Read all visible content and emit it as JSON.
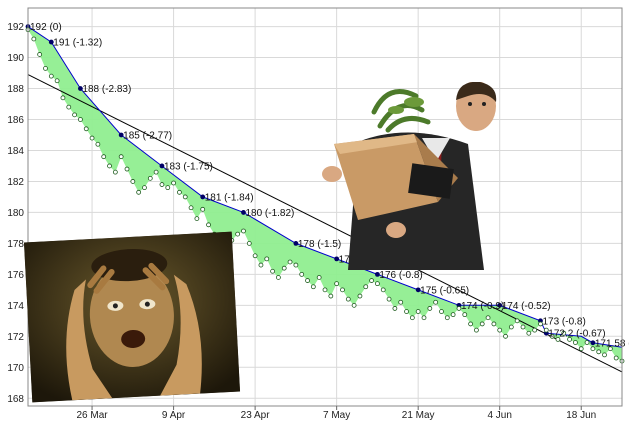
{
  "chart_data": {
    "type": "area",
    "title": "",
    "xlabel": "",
    "ylabel": "",
    "ylim": [
      167.5,
      193.2
    ],
    "yticks": [
      168,
      170,
      172,
      174,
      176,
      178,
      180,
      182,
      184,
      186,
      188,
      190,
      192
    ],
    "xlim": [
      "2012-03-15",
      "2012-06-25"
    ],
    "xticks": [
      {
        "date": "2012-03-26",
        "label": "26 Mar"
      },
      {
        "date": "2012-04-09",
        "label": "9 Apr"
      },
      {
        "date": "2012-04-23",
        "label": "23 Apr"
      },
      {
        "date": "2012-05-07",
        "label": "7 May"
      },
      {
        "date": "2012-05-21",
        "label": "21 May"
      },
      {
        "date": "2012-06-04",
        "label": "4 Jun"
      },
      {
        "date": "2012-06-18",
        "label": "18 Jun"
      }
    ],
    "grid": true,
    "series": [
      {
        "role": "weekly-weigh-in",
        "color": "#0000cc",
        "points": [
          {
            "date": "2012-03-15",
            "y": 192,
            "label": "192 (0)"
          },
          {
            "date": "2012-03-19",
            "y": 191,
            "label": "191 (-1.32)"
          },
          {
            "date": "2012-03-24",
            "y": 188,
            "label": "188 (-2.83)"
          },
          {
            "date": "2012-03-31",
            "y": 185,
            "label": "185 (-2.77)"
          },
          {
            "date": "2012-04-07",
            "y": 183,
            "label": "183 (-1.75)"
          },
          {
            "date": "2012-04-14",
            "y": 181,
            "label": "181 (-1.84)"
          },
          {
            "date": "2012-04-21",
            "y": 180,
            "label": "180 (-1.82)"
          },
          {
            "date": "2012-04-30",
            "y": 178,
            "label": "178 (-1.5)"
          },
          {
            "date": "2012-05-07",
            "y": 177,
            "label": "177 (-1.63)"
          },
          {
            "date": "2012-05-14",
            "y": 176,
            "label": "176 (-0.8)"
          },
          {
            "date": "2012-05-21",
            "y": 175,
            "label": "175 (-0.65)"
          },
          {
            "date": "2012-05-28",
            "y": 174,
            "label": "174 (-0.9)"
          },
          {
            "date": "2012-06-04",
            "y": 174,
            "label": "174 (-0.52)"
          },
          {
            "date": "2012-06-11",
            "y": 173,
            "label": "173 (-0.8)"
          },
          {
            "date": "2012-06-12",
            "y": 172.2,
            "label": "172.2 (-0.67)"
          },
          {
            "date": "2012-06-18",
            "y": 172,
            "label": ""
          },
          {
            "date": "2012-06-20",
            "y": 171.58,
            "label": "171.58 (-0.62)"
          },
          {
            "date": "2012-06-25",
            "y": 171.3,
            "label": ""
          }
        ]
      },
      {
        "role": "trend",
        "color": "#000000",
        "points": [
          {
            "date": "2012-03-15",
            "y": 188.9
          },
          {
            "date": "2012-06-25",
            "y": 169.7
          }
        ]
      },
      {
        "role": "daily-readings",
        "color": "#90ee90",
        "points": [
          {
            "date": "2012-03-15",
            "y": 191.8
          },
          {
            "date": "2012-03-16",
            "y": 191.2
          },
          {
            "date": "2012-03-17",
            "y": 190.2
          },
          {
            "date": "2012-03-18",
            "y": 189.3
          },
          {
            "date": "2012-03-19",
            "y": 188.8
          },
          {
            "date": "2012-03-20",
            "y": 188.5
          },
          {
            "date": "2012-03-21",
            "y": 187.4
          },
          {
            "date": "2012-03-22",
            "y": 186.8
          },
          {
            "date": "2012-03-23",
            "y": 186.3
          },
          {
            "date": "2012-03-24",
            "y": 186.0
          },
          {
            "date": "2012-03-25",
            "y": 185.4
          },
          {
            "date": "2012-03-26",
            "y": 184.8
          },
          {
            "date": "2012-03-27",
            "y": 184.4
          },
          {
            "date": "2012-03-28",
            "y": 183.6
          },
          {
            "date": "2012-03-29",
            "y": 183.0
          },
          {
            "date": "2012-03-30",
            "y": 182.6
          },
          {
            "date": "2012-03-31",
            "y": 183.6
          },
          {
            "date": "2012-04-01",
            "y": 182.8
          },
          {
            "date": "2012-04-02",
            "y": 182.0
          },
          {
            "date": "2012-04-03",
            "y": 181.3
          },
          {
            "date": "2012-04-04",
            "y": 181.6
          },
          {
            "date": "2012-04-05",
            "y": 182.2
          },
          {
            "date": "2012-04-06",
            "y": 182.6
          },
          {
            "date": "2012-04-07",
            "y": 181.8
          },
          {
            "date": "2012-04-08",
            "y": 181.6
          },
          {
            "date": "2012-04-09",
            "y": 181.9
          },
          {
            "date": "2012-04-10",
            "y": 181.3
          },
          {
            "date": "2012-04-11",
            "y": 181.0
          },
          {
            "date": "2012-04-12",
            "y": 180.3
          },
          {
            "date": "2012-04-13",
            "y": 179.6
          },
          {
            "date": "2012-04-14",
            "y": 180.2
          },
          {
            "date": "2012-04-15",
            "y": 179.2
          },
          {
            "date": "2012-04-16",
            "y": 178.6
          },
          {
            "date": "2012-04-17",
            "y": 178.0
          },
          {
            "date": "2012-04-18",
            "y": 177.4
          },
          {
            "date": "2012-04-19",
            "y": 178.2
          },
          {
            "date": "2012-04-20",
            "y": 178.6
          },
          {
            "date": "2012-04-21",
            "y": 178.8
          },
          {
            "date": "2012-04-22",
            "y": 178.0
          },
          {
            "date": "2012-04-23",
            "y": 177.2
          },
          {
            "date": "2012-04-24",
            "y": 176.6
          },
          {
            "date": "2012-04-25",
            "y": 177.0
          },
          {
            "date": "2012-04-26",
            "y": 176.2
          },
          {
            "date": "2012-04-27",
            "y": 175.8
          },
          {
            "date": "2012-04-28",
            "y": 176.4
          },
          {
            "date": "2012-04-29",
            "y": 176.8
          },
          {
            "date": "2012-04-30",
            "y": 176.6
          },
          {
            "date": "2012-05-01",
            "y": 176.0
          },
          {
            "date": "2012-05-02",
            "y": 175.6
          },
          {
            "date": "2012-05-03",
            "y": 175.2
          },
          {
            "date": "2012-05-04",
            "y": 175.8
          },
          {
            "date": "2012-05-05",
            "y": 175.0
          },
          {
            "date": "2012-05-06",
            "y": 174.6
          },
          {
            "date": "2012-05-07",
            "y": 175.4
          },
          {
            "date": "2012-05-08",
            "y": 175.0
          },
          {
            "date": "2012-05-09",
            "y": 174.4
          },
          {
            "date": "2012-05-10",
            "y": 174.0
          },
          {
            "date": "2012-05-11",
            "y": 174.6
          },
          {
            "date": "2012-05-12",
            "y": 175.2
          },
          {
            "date": "2012-05-13",
            "y": 175.6
          },
          {
            "date": "2012-05-14",
            "y": 175.4
          },
          {
            "date": "2012-05-15",
            "y": 175.0
          },
          {
            "date": "2012-05-16",
            "y": 174.4
          },
          {
            "date": "2012-05-17",
            "y": 173.8
          },
          {
            "date": "2012-05-18",
            "y": 174.2
          },
          {
            "date": "2012-05-19",
            "y": 173.6
          },
          {
            "date": "2012-05-20",
            "y": 173.2
          },
          {
            "date": "2012-05-21",
            "y": 173.6
          },
          {
            "date": "2012-05-22",
            "y": 173.2
          },
          {
            "date": "2012-05-23",
            "y": 173.8
          },
          {
            "date": "2012-05-24",
            "y": 174.2
          },
          {
            "date": "2012-05-25",
            "y": 173.6
          },
          {
            "date": "2012-05-26",
            "y": 173.2
          },
          {
            "date": "2012-05-27",
            "y": 173.4
          },
          {
            "date": "2012-05-28",
            "y": 173.8
          },
          {
            "date": "2012-05-29",
            "y": 173.4
          },
          {
            "date": "2012-05-30",
            "y": 172.8
          },
          {
            "date": "2012-05-31",
            "y": 172.4
          },
          {
            "date": "2012-06-01",
            "y": 172.8
          },
          {
            "date": "2012-06-02",
            "y": 173.2
          },
          {
            "date": "2012-06-03",
            "y": 172.8
          },
          {
            "date": "2012-06-04",
            "y": 172.4
          },
          {
            "date": "2012-06-05",
            "y": 172.0
          },
          {
            "date": "2012-06-06",
            "y": 172.6
          },
          {
            "date": "2012-06-07",
            "y": 173.0
          },
          {
            "date": "2012-06-08",
            "y": 172.6
          },
          {
            "date": "2012-06-09",
            "y": 172.2
          },
          {
            "date": "2012-06-10",
            "y": 172.4
          },
          {
            "date": "2012-06-11",
            "y": 172.8
          },
          {
            "date": "2012-06-12",
            "y": 172.4
          },
          {
            "date": "2012-06-13",
            "y": 172.0
          },
          {
            "date": "2012-06-14",
            "y": 171.8
          },
          {
            "date": "2012-06-15",
            "y": 172.2
          },
          {
            "date": "2012-06-16",
            "y": 171.8
          },
          {
            "date": "2012-06-17",
            "y": 171.6
          },
          {
            "date": "2012-06-18",
            "y": 171.2
          },
          {
            "date": "2012-06-19",
            "y": 171.6
          },
          {
            "date": "2012-06-20",
            "y": 171.2
          },
          {
            "date": "2012-06-21",
            "y": 171.0
          },
          {
            "date": "2012-06-22",
            "y": 170.8
          },
          {
            "date": "2012-06-23",
            "y": 171.2
          },
          {
            "date": "2012-06-24",
            "y": 170.6
          },
          {
            "date": "2012-06-25",
            "y": 170.4
          }
        ]
      }
    ],
    "highlight_label_color": "#cc0000",
    "highlight_label_index": 9
  },
  "photos": [
    {
      "name": "distressed-man-photo"
    },
    {
      "name": "man-with-box-photo"
    }
  ]
}
